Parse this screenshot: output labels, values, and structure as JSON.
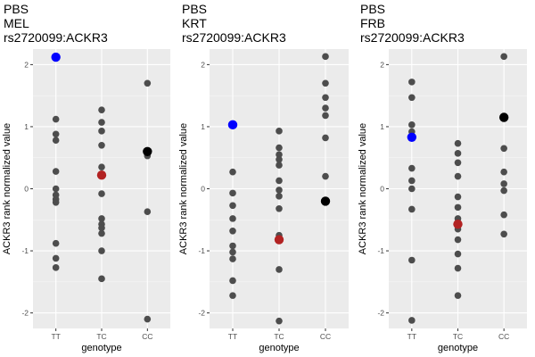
{
  "chart_data": [
    {
      "type": "scatter",
      "title_lines": [
        "PBS",
        "MEL",
        "rs2720099:ACKR3"
      ],
      "xlabel": "genotype",
      "ylabel": "ACKR3 rank normalized value",
      "categories": [
        "TT",
        "TC",
        "CC"
      ],
      "ylim": [
        -2.25,
        2.25
      ],
      "yticks": [
        -2,
        -1,
        0,
        1,
        2
      ],
      "grid": true,
      "point_color": "#4d4d4d",
      "points": {
        "TT": [
          1.12,
          0.88,
          0.78,
          0.28,
          0.0,
          -0.1,
          -0.17,
          -0.22,
          -0.88,
          -1.12,
          -1.27
        ],
        "TC": [
          1.27,
          1.07,
          0.93,
          0.7,
          0.35,
          0.23,
          -0.08,
          -0.48,
          -0.57,
          -0.63,
          -0.72,
          -1.0,
          -1.45
        ],
        "CC": [
          1.7,
          0.53,
          -0.37,
          -2.1
        ]
      },
      "highlight_points": [
        {
          "category": "TT",
          "value": 2.12,
          "color": "#0000ff"
        },
        {
          "category": "TC",
          "value": 0.22,
          "color": "#b22222"
        },
        {
          "category": "CC",
          "value": 0.6,
          "color": "#000000"
        }
      ]
    },
    {
      "type": "scatter",
      "title_lines": [
        "PBS",
        "KRT",
        "rs2720099:ACKR3"
      ],
      "xlabel": "genotype",
      "ylabel": "ACKR3 rank normalized value",
      "categories": [
        "TT",
        "TC",
        "CC"
      ],
      "ylim": [
        -2.25,
        2.25
      ],
      "yticks": [
        -2,
        -1,
        0,
        1,
        2
      ],
      "grid": true,
      "point_color": "#4d4d4d",
      "points": {
        "TT": [
          0.27,
          -0.07,
          -0.27,
          -0.48,
          -0.68,
          -0.92,
          -1.02,
          -1.13,
          -1.48,
          -1.72
        ],
        "TC": [
          0.93,
          0.66,
          0.55,
          0.47,
          0.38,
          0.13,
          -0.02,
          -0.12,
          -0.32,
          -0.75,
          -1.3,
          -2.13
        ],
        "CC": [
          2.13,
          1.7,
          1.47,
          1.3,
          1.18,
          0.82,
          0.2
        ]
      },
      "highlight_points": [
        {
          "category": "TT",
          "value": 1.03,
          "color": "#0000ff"
        },
        {
          "category": "TC",
          "value": -0.82,
          "color": "#b22222"
        },
        {
          "category": "CC",
          "value": -0.2,
          "color": "#000000"
        }
      ]
    },
    {
      "type": "scatter",
      "title_lines": [
        "PBS",
        "FRB",
        "rs2720099:ACKR3"
      ],
      "xlabel": "genotype",
      "ylabel": "ACKR3 rank normalized value",
      "categories": [
        "TT",
        "TC",
        "CC"
      ],
      "ylim": [
        -2.25,
        2.25
      ],
      "yticks": [
        -2,
        -1,
        0,
        1,
        2
      ],
      "grid": true,
      "point_color": "#4d4d4d",
      "points": {
        "TT": [
          1.72,
          1.47,
          1.03,
          0.92,
          0.33,
          0.13,
          0.0,
          -0.33,
          -1.15,
          -2.12
        ],
        "TC": [
          0.73,
          0.57,
          0.42,
          0.2,
          -0.13,
          -0.3,
          -0.48,
          -0.65,
          -0.82,
          -1.05,
          -1.28,
          -1.72
        ],
        "CC": [
          2.13,
          0.65,
          0.27,
          0.08,
          -0.03,
          -0.42,
          -0.73
        ]
      },
      "highlight_points": [
        {
          "category": "TT",
          "value": 0.83,
          "color": "#0000ff"
        },
        {
          "category": "TC",
          "value": -0.57,
          "color": "#b22222"
        },
        {
          "category": "CC",
          "value": 1.15,
          "color": "#000000"
        }
      ]
    }
  ]
}
